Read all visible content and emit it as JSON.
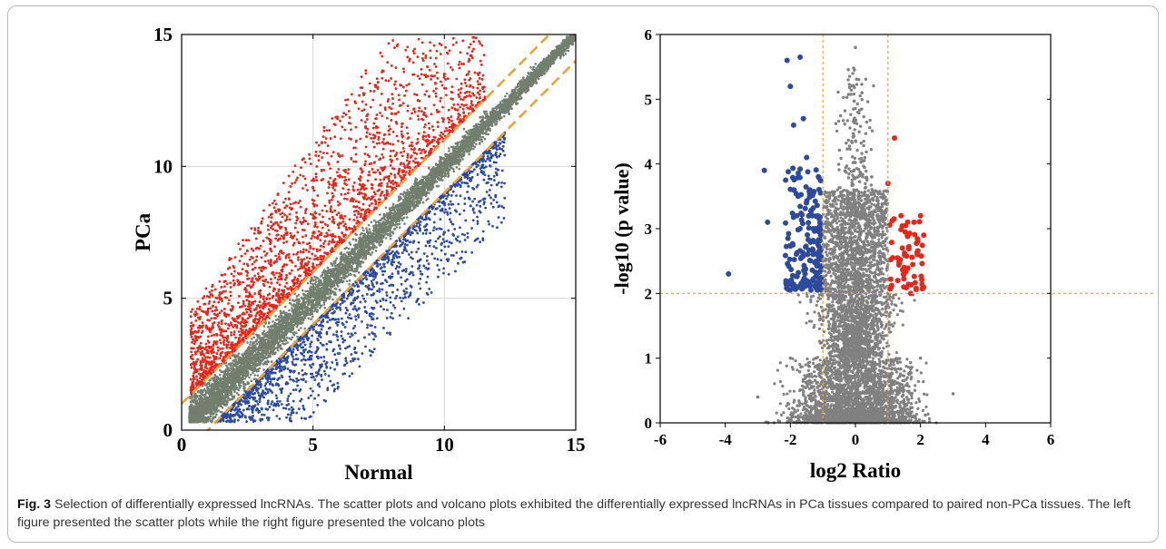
{
  "colors": {
    "up": "#e5271b",
    "down": "#2d4a9d",
    "neutral_scatter": "#727e6e",
    "neutral_volcano": "#808080",
    "threshold": "#e8a23a"
  },
  "chart_data": [
    {
      "type": "scatter",
      "xlabel": "Normal",
      "ylabel": "PCa",
      "xlim": [
        0,
        15
      ],
      "ylim": [
        0,
        15
      ],
      "xticks": [
        "0",
        "5",
        "10",
        "15"
      ],
      "yticks": [
        "0",
        "5",
        "10",
        "15"
      ],
      "grid": true,
      "threshold_lines": [
        {
          "intercept": 1,
          "slope": 1
        },
        {
          "intercept": -1,
          "slope": 1
        }
      ],
      "series": [
        {
          "group": "up",
          "x": [
            0.5,
            1.0,
            1.5,
            2.0,
            2.5,
            3.0,
            3.5,
            4.0,
            5.0,
            6.0,
            7.0,
            8.0,
            9.0,
            10.0,
            11.0
          ],
          "y": [
            2.2,
            3.0,
            3.8,
            5.5,
            6.8,
            7.5,
            7.8,
            8.5,
            9.2,
            10.4,
            11.5,
            12.0,
            12.5,
            13.5,
            14.2
          ]
        },
        {
          "group": "down",
          "x": [
            1.5,
            2.5,
            3.0,
            4.0,
            5.0,
            6.0,
            7.0,
            8.0,
            9.0,
            10.0,
            11.0,
            12.0
          ],
          "y": [
            0.4,
            0.8,
            1.3,
            1.8,
            2.5,
            3.2,
            4.5,
            5.5,
            6.4,
            7.5,
            8.5,
            9.3
          ]
        },
        {
          "group": "neutral",
          "x": [
            0.3,
            2.0,
            4.0,
            6.0,
            8.0,
            10.0,
            12.0,
            14.0,
            15.0
          ],
          "y": [
            0.5,
            2.0,
            4.0,
            6.0,
            8.0,
            10.0,
            12.0,
            14.0,
            15.0
          ]
        }
      ]
    },
    {
      "type": "scatter",
      "xlabel": "log2 Ratio",
      "ylabel": "-log10 (p value)",
      "xlim": [
        -6,
        6
      ],
      "ylim": [
        0,
        6
      ],
      "xticks": [
        "-6",
        "-4",
        "-2",
        "0",
        "2",
        "4",
        "6"
      ],
      "yticks": [
        "0",
        "1",
        "2",
        "3",
        "4",
        "5",
        "6"
      ],
      "grid": false,
      "threshold_lines": [
        {
          "axis": "x",
          "value": -1
        },
        {
          "axis": "x",
          "value": 1
        },
        {
          "axis": "y",
          "value": 2
        }
      ],
      "series": [
        {
          "group": "down",
          "x": [
            -3.9,
            -2.8,
            -2.7,
            -2.1,
            -2.0,
            -1.9,
            -1.9,
            -1.8,
            -1.7,
            -1.6,
            -1.5,
            -1.4,
            -1.3,
            -1.2,
            -1.5,
            -1.3,
            -1.1
          ],
          "y": [
            2.3,
            3.9,
            3.1,
            5.6,
            5.2,
            4.6,
            3.6,
            3.2,
            5.65,
            4.7,
            4.1,
            3.6,
            3.0,
            2.5,
            2.2,
            2.8,
            2.1
          ]
        },
        {
          "group": "up",
          "x": [
            1.0,
            1.2,
            1.4,
            1.6,
            1.8,
            2.0,
            2.1,
            1.1,
            1.5,
            1.9,
            1.3,
            1.7
          ],
          "y": [
            3.7,
            4.4,
            3.2,
            2.9,
            3.1,
            3.2,
            2.9,
            2.1,
            2.4,
            2.6,
            2.2,
            2.0
          ]
        },
        {
          "group": "neutral",
          "x": [
            -3.0,
            -2.0,
            -1.0,
            -0.5,
            0.0,
            0.2,
            0.5,
            1.0,
            2.0,
            3.0
          ],
          "y": [
            0.4,
            1.0,
            2.5,
            3.5,
            5.8,
            5.1,
            3.8,
            2.5,
            1.0,
            0.45
          ]
        }
      ]
    }
  ],
  "caption": {
    "label": "Fig. 3",
    "text": "Selection of differentially expressed lncRNAs. The scatter plots and volcano plots exhibited the differentially expressed lncRNAs in PCa tissues compared to paired non-PCa tissues. The left figure presented the scatter plots while the right figure presented the volcano plots"
  }
}
